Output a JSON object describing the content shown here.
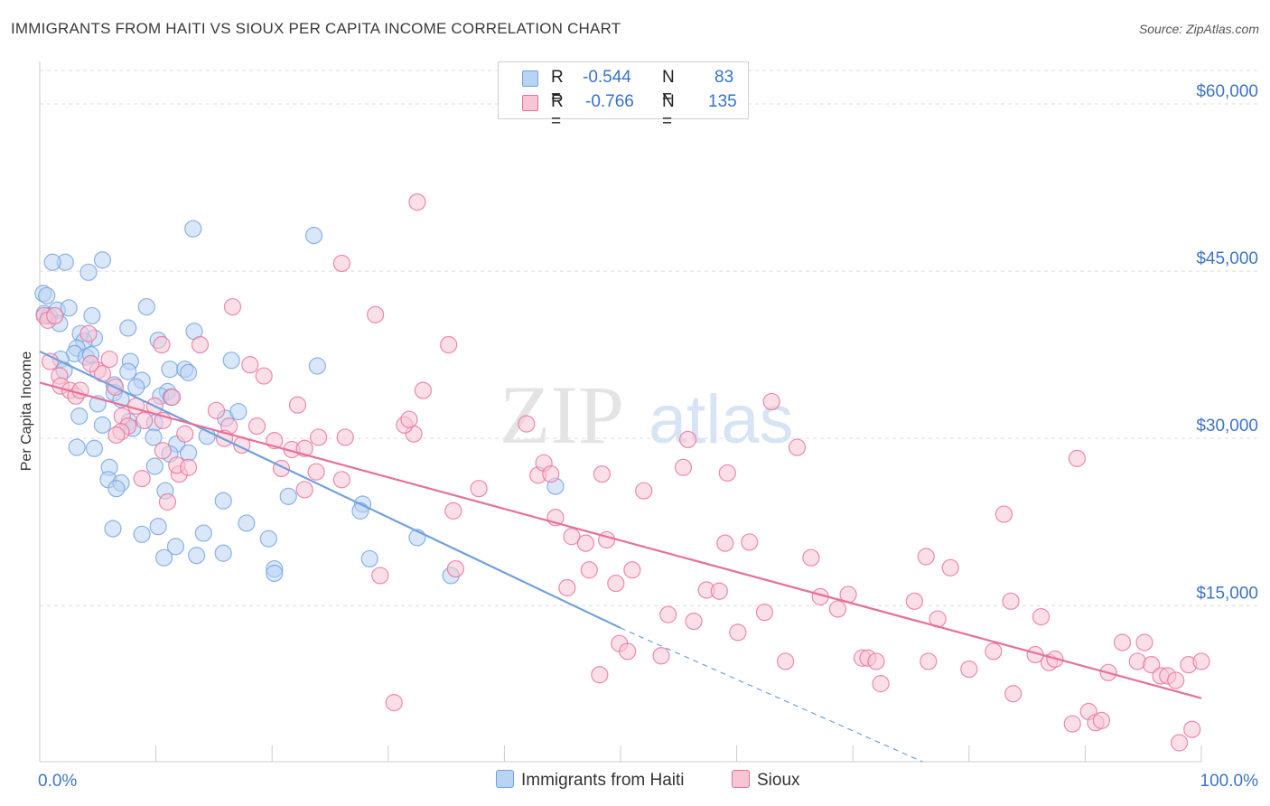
{
  "header": {
    "title": "IMMIGRANTS FROM HAITI VS SIOUX PER CAPITA INCOME CORRELATION CHART",
    "source": "Source: ZipAtlas.com"
  },
  "legend": {
    "rows": [
      {
        "r_label": "R =",
        "r_value": "-0.544",
        "n_label": "N =",
        "n_value": "83",
        "color": "#a9c8f0"
      },
      {
        "r_label": "R =",
        "r_value": "-0.766",
        "n_label": "N =",
        "n_value": "135",
        "color": "#f5b8cc"
      }
    ]
  },
  "watermark": {
    "zip": "ZIP",
    "atlas": "atlas"
  },
  "chart_data": {
    "type": "scatter",
    "title": "IMMIGRANTS FROM HAITI VS SIOUX PER CAPITA INCOME CORRELATION CHART",
    "xlabel": "",
    "ylabel": "Per Capita Income",
    "xlim": [
      0,
      100
    ],
    "ylim": [
      1000,
      63000
    ],
    "x_tick_labels": [
      "0.0%",
      "100.0%"
    ],
    "y_ticks": [
      15000,
      30000,
      45000,
      60000
    ],
    "y_tick_labels": [
      "$15,000",
      "$30,000",
      "$45,000",
      "$60,000"
    ],
    "grid": "horizontal dashed",
    "legend_position": "top-center",
    "series": [
      {
        "name": "Immigrants from Haiti",
        "color": "#6fa1e0",
        "fill": "#b9d3f3",
        "trend": {
          "x0": 0,
          "y0": 37800,
          "x1": 50,
          "y1": 13000,
          "dash_to_x": 76,
          "dash_to_y": 0
        },
        "points": [
          [
            0.3,
            43000
          ],
          [
            0.6,
            42800
          ],
          [
            0.4,
            41200
          ],
          [
            0.8,
            41000
          ],
          [
            1.5,
            41500
          ],
          [
            1.7,
            40300
          ],
          [
            2.5,
            41700
          ],
          [
            2.2,
            45800
          ],
          [
            1.1,
            45800
          ],
          [
            4.2,
            44900
          ],
          [
            5.4,
            46000
          ],
          [
            4.5,
            41000
          ],
          [
            3.5,
            39400
          ],
          [
            4.7,
            39000
          ],
          [
            3.8,
            38700
          ],
          [
            3.2,
            38100
          ],
          [
            3.0,
            37600
          ],
          [
            4.0,
            37300
          ],
          [
            1.8,
            37100
          ],
          [
            2.1,
            36100
          ],
          [
            7.6,
            39900
          ],
          [
            10.2,
            38800
          ],
          [
            9.2,
            41800
          ],
          [
            13.2,
            48800
          ],
          [
            23.6,
            48200
          ],
          [
            13.3,
            39600
          ],
          [
            16.5,
            37000
          ],
          [
            7.8,
            36900
          ],
          [
            7.6,
            36000
          ],
          [
            11.2,
            36200
          ],
          [
            12.5,
            36200
          ],
          [
            12.8,
            35900
          ],
          [
            11.0,
            34200
          ],
          [
            10.4,
            33800
          ],
          [
            11.3,
            33700
          ],
          [
            8.8,
            35200
          ],
          [
            8.3,
            34600
          ],
          [
            6.4,
            34800
          ],
          [
            6.4,
            34100
          ],
          [
            7.0,
            33500
          ],
          [
            5.0,
            33100
          ],
          [
            3.4,
            32000
          ],
          [
            5.4,
            31200
          ],
          [
            7.7,
            31500
          ],
          [
            9.9,
            31400
          ],
          [
            8.0,
            30900
          ],
          [
            9.8,
            30100
          ],
          [
            14.4,
            30200
          ],
          [
            11.8,
            29500
          ],
          [
            11.2,
            28600
          ],
          [
            12.8,
            28700
          ],
          [
            6.0,
            27400
          ],
          [
            5.9,
            26300
          ],
          [
            9.9,
            27500
          ],
          [
            7.0,
            26000
          ],
          [
            6.6,
            25500
          ],
          [
            10.8,
            25300
          ],
          [
            3.2,
            29200
          ],
          [
            4.7,
            29100
          ],
          [
            16.0,
            31800
          ],
          [
            17.1,
            32400
          ],
          [
            23.9,
            36500
          ],
          [
            21.4,
            24800
          ],
          [
            27.8,
            24100
          ],
          [
            27.6,
            23500
          ],
          [
            17.8,
            22400
          ],
          [
            15.8,
            24400
          ],
          [
            6.3,
            21900
          ],
          [
            8.8,
            21400
          ],
          [
            10.2,
            22100
          ],
          [
            14.1,
            21500
          ],
          [
            19.7,
            21000
          ],
          [
            11.7,
            20300
          ],
          [
            10.7,
            19300
          ],
          [
            13.5,
            19500
          ],
          [
            15.8,
            19700
          ],
          [
            20.2,
            18300
          ],
          [
            20.2,
            17900
          ],
          [
            28.4,
            19200
          ],
          [
            32.5,
            21100
          ],
          [
            35.4,
            17700
          ],
          [
            44.4,
            25700
          ],
          [
            4.4,
            37500
          ]
        ]
      },
      {
        "name": "Sioux",
        "color": "#e86f96",
        "fill": "#f8c5d5",
        "trend": {
          "x0": 0,
          "y0": 35000,
          "x1": 100,
          "y1": 6700
        },
        "points": [
          [
            0.4,
            41000
          ],
          [
            0.7,
            40600
          ],
          [
            1.3,
            41000
          ],
          [
            0.9,
            36900
          ],
          [
            1.7,
            35600
          ],
          [
            1.8,
            34700
          ],
          [
            2.6,
            34300
          ],
          [
            3.1,
            33800
          ],
          [
            3.5,
            34300
          ],
          [
            5.0,
            36100
          ],
          [
            5.4,
            35800
          ],
          [
            6.0,
            37100
          ],
          [
            6.5,
            34600
          ],
          [
            7.1,
            32000
          ],
          [
            7.6,
            31100
          ],
          [
            8.3,
            32900
          ],
          [
            9.0,
            31600
          ],
          [
            9.9,
            32900
          ],
          [
            10.6,
            31600
          ],
          [
            11.4,
            33700
          ],
          [
            10.6,
            28900
          ],
          [
            12.0,
            26800
          ],
          [
            12.5,
            30400
          ],
          [
            11.8,
            27600
          ],
          [
            12.8,
            27400
          ],
          [
            11.0,
            24300
          ],
          [
            8.8,
            26400
          ],
          [
            7.0,
            30600
          ],
          [
            6.6,
            30300
          ],
          [
            4.4,
            36700
          ],
          [
            4.2,
            39400
          ],
          [
            10.5,
            38400
          ],
          [
            13.8,
            38400
          ],
          [
            16.6,
            41800
          ],
          [
            18.1,
            36600
          ],
          [
            19.3,
            35600
          ],
          [
            15.2,
            32500
          ],
          [
            16.3,
            31100
          ],
          [
            15.9,
            30000
          ],
          [
            17.4,
            29400
          ],
          [
            18.7,
            31100
          ],
          [
            20.2,
            29800
          ],
          [
            20.8,
            27300
          ],
          [
            21.7,
            29000
          ],
          [
            22.8,
            29100
          ],
          [
            24.0,
            30100
          ],
          [
            22.8,
            25400
          ],
          [
            23.8,
            27000
          ],
          [
            26.3,
            30100
          ],
          [
            26.0,
            26300
          ],
          [
            22.2,
            33000
          ],
          [
            28.9,
            41100
          ],
          [
            32.2,
            30400
          ],
          [
            31.4,
            31200
          ],
          [
            31.8,
            31700
          ],
          [
            33.0,
            34300
          ],
          [
            32.5,
            51200
          ],
          [
            26.0,
            45700
          ],
          [
            35.2,
            38400
          ],
          [
            35.6,
            23500
          ],
          [
            37.8,
            25500
          ],
          [
            41.9,
            31300
          ],
          [
            42.9,
            26700
          ],
          [
            43.4,
            27800
          ],
          [
            44.0,
            26800
          ],
          [
            44.4,
            22900
          ],
          [
            45.4,
            16600
          ],
          [
            45.8,
            21200
          ],
          [
            47.0,
            20600
          ],
          [
            47.3,
            18200
          ],
          [
            48.4,
            26800
          ],
          [
            48.8,
            20900
          ],
          [
            49.6,
            17000
          ],
          [
            49.9,
            11600
          ],
          [
            50.6,
            10900
          ],
          [
            51.0,
            18200
          ],
          [
            52.0,
            25300
          ],
          [
            53.5,
            10500
          ],
          [
            54.1,
            14200
          ],
          [
            55.4,
            27400
          ],
          [
            55.8,
            29900
          ],
          [
            56.3,
            13600
          ],
          [
            57.4,
            16400
          ],
          [
            58.5,
            16300
          ],
          [
            59.2,
            26900
          ],
          [
            59.0,
            20600
          ],
          [
            60.1,
            12600
          ],
          [
            61.1,
            20700
          ],
          [
            62.4,
            14400
          ],
          [
            63.0,
            33300
          ],
          [
            64.2,
            10000
          ],
          [
            65.2,
            29200
          ],
          [
            66.4,
            19300
          ],
          [
            67.2,
            15800
          ],
          [
            68.7,
            14700
          ],
          [
            69.6,
            16000
          ],
          [
            70.8,
            10300
          ],
          [
            71.3,
            10300
          ],
          [
            72.0,
            10000
          ],
          [
            72.4,
            8000
          ],
          [
            75.3,
            15400
          ],
          [
            76.3,
            19400
          ],
          [
            76.5,
            10000
          ],
          [
            77.3,
            13800
          ],
          [
            78.4,
            18400
          ],
          [
            80.0,
            9300
          ],
          [
            82.1,
            10900
          ],
          [
            83.0,
            23200
          ],
          [
            83.6,
            15400
          ],
          [
            83.8,
            7100
          ],
          [
            85.7,
            10600
          ],
          [
            86.2,
            14000
          ],
          [
            86.9,
            9900
          ],
          [
            87.4,
            10200
          ],
          [
            89.3,
            28200
          ],
          [
            90.3,
            5500
          ],
          [
            90.9,
            4500
          ],
          [
            91.4,
            4700
          ],
          [
            92.0,
            9000
          ],
          [
            93.2,
            11700
          ],
          [
            94.5,
            10000
          ],
          [
            95.1,
            11700
          ],
          [
            95.7,
            9700
          ],
          [
            96.5,
            8700
          ],
          [
            97.1,
            8700
          ],
          [
            97.8,
            8300
          ],
          [
            98.1,
            2700
          ],
          [
            98.9,
            9700
          ],
          [
            99.2,
            3900
          ],
          [
            100.0,
            10000
          ],
          [
            88.9,
            4400
          ],
          [
            35.8,
            18300
          ],
          [
            48.2,
            8800
          ],
          [
            30.5,
            6300
          ],
          [
            29.3,
            17700
          ]
        ]
      }
    ]
  },
  "bottom_legend": {
    "items": [
      {
        "label": "Immigrants from Haiti",
        "color": "#b9d3f3",
        "border": "#6fa1e0"
      },
      {
        "label": "Sioux",
        "color": "#f8c5d5",
        "border": "#e86f96"
      }
    ]
  }
}
